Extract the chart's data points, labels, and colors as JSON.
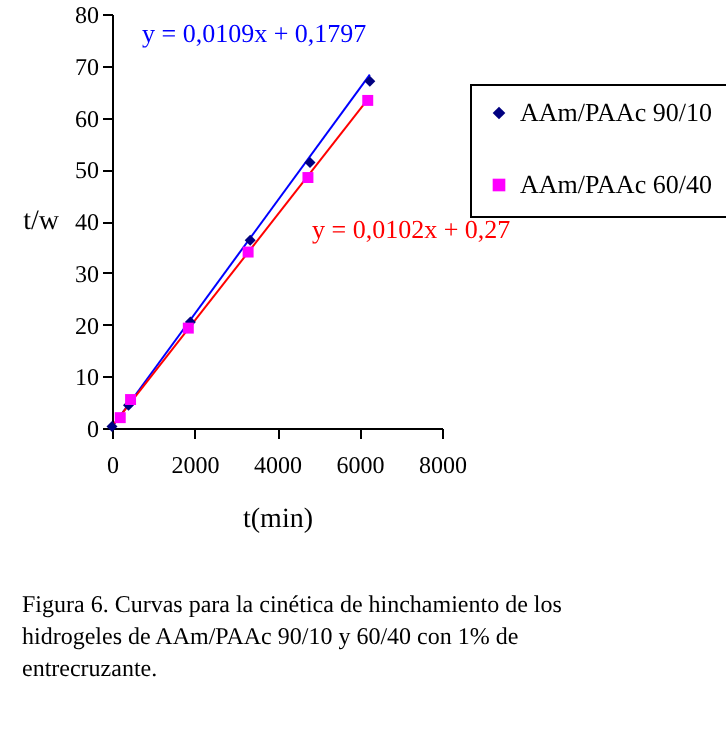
{
  "chart_data": {
    "type": "scatter",
    "xlabel": "t(min)",
    "ylabel": "t/w",
    "xlim": [
      0,
      8000
    ],
    "xticks": [
      0,
      2000,
      4000,
      6000,
      8000
    ],
    "ylim": [
      0,
      80
    ],
    "yticks": [
      0,
      10,
      20,
      30,
      40,
      50,
      60,
      70,
      80
    ],
    "grid": false,
    "legend": "right",
    "series": [
      {
        "name": "AAm/PAAc 90/10",
        "type": "scatter",
        "marker": "diamond",
        "color": "#000080",
        "x": [
          0,
          400,
          1900,
          3350,
          4800,
          6250
        ],
        "values": [
          0.3,
          4.4,
          20.5,
          36.3,
          51.3,
          67
        ]
      },
      {
        "name": "AAm/PAAc 60/40",
        "type": "scatter",
        "marker": "square",
        "color": "#ff00ff",
        "x": [
          200,
          450,
          1850,
          3300,
          4750,
          6200
        ],
        "values": [
          2,
          5.5,
          19.3,
          34,
          48.4,
          63.3
        ]
      },
      {
        "type": "line",
        "color": "#0000ff",
        "x": [
          0,
          6250
        ],
        "values": [
          0.2,
          68.3
        ]
      },
      {
        "type": "line",
        "color": "#ff0000",
        "x": [
          0,
          6200
        ],
        "values": [
          0.3,
          63.5
        ]
      }
    ],
    "annotations": [
      "y = 0,0109x + 0,1797",
      "y = 0,0102x + 0,27",
      "Figura 6. Curvas para la cinética de hinchamiento de los hidrogeles de AAm/PAAc 90/10 y 60/40 con 1% de entrecruzante."
    ]
  }
}
